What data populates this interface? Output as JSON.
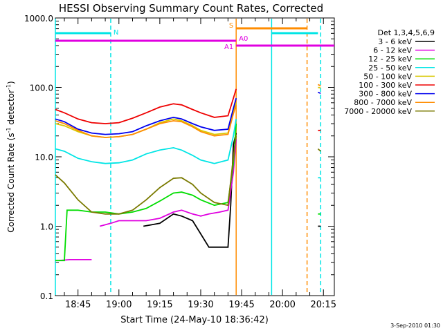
{
  "chart_data": {
    "type": "line",
    "title": "HESSI Observing Summary Count Rates, Corrected",
    "xlabel": "Start Time (24-May-10 18:36:42)",
    "ylabel_main": "Corrected Count Rate (s",
    "ylabel_sup1": "-1",
    "ylabel_mid": " detector",
    "ylabel_sup2": "-1",
    "ylabel_end": ")",
    "y_scale": "log",
    "ylim": [
      0.1,
      1000
    ],
    "xlim": [
      "18:36:42",
      "20:19:00"
    ],
    "x_ticks": [
      "18:45",
      "19:00",
      "19:15",
      "19:30",
      "19:45",
      "20:00",
      "20:15"
    ],
    "y_ticks": [
      "0.1",
      "1.0",
      "10.0",
      "100.0",
      "1000.0"
    ],
    "legend_title": "Det 1,3,4,5,6,9",
    "legend_position": "right, outside plot",
    "footer_date": "3-Sep-2010 01:30",
    "flags": [
      {
        "label": "N",
        "color": "#00e5e5",
        "segments": [
          [
            "18:36:42",
            "18:57:00"
          ],
          [
            "19:56:00",
            "20:13:00"
          ]
        ]
      },
      {
        "label": "S",
        "color": "#ff8c00",
        "segments": [
          [
            "19:43:00",
            "20:09:00"
          ]
        ]
      },
      {
        "label": "A0",
        "color": "#e000e0",
        "segments": [
          [
            "18:36:42",
            "19:43:00"
          ]
        ]
      },
      {
        "label": "A1",
        "color": "#e000e0",
        "segments": [
          [
            "19:43:00",
            "20:19:00"
          ]
        ]
      }
    ],
    "markers": [
      {
        "time": "18:36:42",
        "color": "#00e5e5",
        "style": "solid"
      },
      {
        "time": "18:57:00",
        "color": "#00e5e5",
        "style": "dashed"
      },
      {
        "time": "19:43:00",
        "color": "#ff8c00",
        "style": "solid"
      },
      {
        "time": "19:56:00",
        "color": "#00e5e5",
        "style": "solid"
      },
      {
        "time": "20:09:00",
        "color": "#ff8c00",
        "style": "dashed"
      },
      {
        "time": "20:14:00",
        "color": "#00e5e5",
        "style": "dashed"
      }
    ],
    "series": [
      {
        "name": "3 - 6 keV",
        "color": "#000000",
        "points": [
          [
            "19:09",
            "1.0"
          ],
          [
            "19:15",
            "1.1"
          ],
          [
            "19:20",
            "1.5"
          ],
          [
            "19:23",
            "1.4"
          ],
          [
            "19:27",
            "1.2"
          ],
          [
            "19:29",
            "0.9"
          ],
          [
            "19:33",
            "0.5"
          ],
          [
            "19:38",
            "0.5"
          ],
          [
            "19:40",
            "0.5"
          ],
          [
            "19:41",
            "2.0"
          ],
          [
            "19:42",
            "15"
          ],
          [
            "19:43",
            "22"
          ]
        ],
        "points_after": [
          [
            "20:13",
            "1.0"
          ],
          [
            "20:14",
            "1.0"
          ]
        ]
      },
      {
        "name": "6 - 12 keV",
        "color": "#e000e0",
        "points": [
          [
            "18:38",
            "0.32"
          ],
          [
            "18:42",
            "0.33"
          ],
          [
            "18:47",
            "0.33"
          ],
          [
            "18:50",
            "0.33"
          ]
        ],
        "points_mid": [
          [
            "18:53",
            "1.0"
          ],
          [
            "18:57",
            "1.1"
          ],
          [
            "19:00",
            "1.2"
          ],
          [
            "19:05",
            "1.2"
          ],
          [
            "19:10",
            "1.2"
          ],
          [
            "19:15",
            "1.3"
          ],
          [
            "19:20",
            "1.6"
          ],
          [
            "19:23",
            "1.7"
          ],
          [
            "19:27",
            "1.5"
          ],
          [
            "19:30",
            "1.4"
          ],
          [
            "19:33",
            "1.5"
          ],
          [
            "19:37",
            "1.6"
          ],
          [
            "19:40",
            "1.7"
          ],
          [
            "19:42",
            "6.0"
          ],
          [
            "19:43",
            "18"
          ]
        ]
      },
      {
        "name": "12 - 25 keV",
        "color": "#00dd00",
        "points": [
          [
            "18:36:42",
            "0.32"
          ],
          [
            "18:40",
            "0.32"
          ],
          [
            "18:41",
            "1.7"
          ],
          [
            "18:45",
            "1.7"
          ],
          [
            "18:50",
            "1.6"
          ],
          [
            "18:55",
            "1.6"
          ],
          [
            "19:00",
            "1.5"
          ],
          [
            "19:05",
            "1.6"
          ],
          [
            "19:10",
            "1.8"
          ],
          [
            "19:15",
            "2.3"
          ],
          [
            "19:20",
            "3.0"
          ],
          [
            "19:23",
            "3.1"
          ],
          [
            "19:27",
            "2.8"
          ],
          [
            "19:30",
            "2.4"
          ],
          [
            "19:35",
            "2.0"
          ],
          [
            "19:40",
            "2.2"
          ],
          [
            "19:42",
            "8.0"
          ],
          [
            "19:43",
            "30"
          ]
        ],
        "points_after": [
          [
            "20:13",
            "1.5"
          ],
          [
            "20:14",
            "1.5"
          ]
        ]
      },
      {
        "name": "25 - 50 keV",
        "color": "#00e5e5",
        "points": [
          [
            "18:36:42",
            "13"
          ],
          [
            "18:40",
            "12"
          ],
          [
            "18:45",
            "9.5"
          ],
          [
            "18:50",
            "8.5"
          ],
          [
            "18:55",
            "8.0"
          ],
          [
            "19:00",
            "8.2"
          ],
          [
            "19:05",
            "9.0"
          ],
          [
            "19:10",
            "11"
          ],
          [
            "19:15",
            "12.5"
          ],
          [
            "19:20",
            "13.5"
          ],
          [
            "19:23",
            "12.5"
          ],
          [
            "19:27",
            "10.5"
          ],
          [
            "19:30",
            "9.0"
          ],
          [
            "19:35",
            "8.0"
          ],
          [
            "19:40",
            "9.0"
          ],
          [
            "19:42",
            "20"
          ],
          [
            "19:43",
            "35"
          ]
        ],
        "points_after": [
          [
            "20:13",
            "5.0"
          ],
          [
            "20:14",
            "5.0"
          ]
        ]
      },
      {
        "name": "50 - 100 keV",
        "color": "#d8c800",
        "points": [
          [
            "18:36:42",
            "30"
          ],
          [
            "18:40",
            "28"
          ],
          [
            "18:45",
            "23"
          ],
          [
            "18:50",
            "20"
          ],
          [
            "18:55",
            "19"
          ],
          [
            "19:00",
            "19.5"
          ],
          [
            "19:05",
            "21"
          ],
          [
            "19:10",
            "25"
          ],
          [
            "19:15",
            "31"
          ],
          [
            "19:20",
            "35"
          ],
          [
            "19:23",
            "33"
          ],
          [
            "19:27",
            "28"
          ],
          [
            "19:30",
            "24"
          ],
          [
            "19:35",
            "21"
          ],
          [
            "19:40",
            "22"
          ],
          [
            "19:42",
            "45"
          ],
          [
            "19:43",
            "60"
          ]
        ],
        "points_after": [
          [
            "20:13",
            "100"
          ],
          [
            "20:14",
            "98"
          ]
        ]
      },
      {
        "name": "100 - 300 keV",
        "color": "#ee0000",
        "points": [
          [
            "18:36:42",
            "48"
          ],
          [
            "18:40",
            "43"
          ],
          [
            "18:45",
            "35"
          ],
          [
            "18:50",
            "31"
          ],
          [
            "18:55",
            "30"
          ],
          [
            "19:00",
            "31"
          ],
          [
            "19:05",
            "36"
          ],
          [
            "19:10",
            "43"
          ],
          [
            "19:15",
            "52"
          ],
          [
            "19:20",
            "58"
          ],
          [
            "19:23",
            "56"
          ],
          [
            "19:27",
            "48"
          ],
          [
            "19:30",
            "43"
          ],
          [
            "19:35",
            "37"
          ],
          [
            "19:40",
            "39"
          ],
          [
            "19:42",
            "70"
          ],
          [
            "19:43",
            "95"
          ]
        ],
        "points_after": [
          [
            "20:13",
            "24"
          ],
          [
            "20:14",
            "24"
          ]
        ]
      },
      {
        "name": "300 - 800 keV",
        "color": "#0000ee",
        "points": [
          [
            "18:36:42",
            "35"
          ],
          [
            "18:40",
            "32"
          ],
          [
            "18:45",
            "25"
          ],
          [
            "18:50",
            "22"
          ],
          [
            "18:55",
            "21"
          ],
          [
            "19:00",
            "21.5"
          ],
          [
            "19:05",
            "23"
          ],
          [
            "19:10",
            "28"
          ],
          [
            "19:15",
            "33"
          ],
          [
            "19:20",
            "37"
          ],
          [
            "19:23",
            "35"
          ],
          [
            "19:27",
            "30"
          ],
          [
            "19:30",
            "27"
          ],
          [
            "19:35",
            "24"
          ],
          [
            "19:40",
            "25"
          ],
          [
            "19:42",
            "50"
          ],
          [
            "19:43",
            "70"
          ]
        ],
        "points_after": [
          [
            "20:13",
            "85"
          ],
          [
            "20:14",
            "82"
          ]
        ]
      },
      {
        "name": "800 - 7000 keV",
        "color": "#ff8c00",
        "points": [
          [
            "18:36:42",
            "33"
          ],
          [
            "18:40",
            "30"
          ],
          [
            "18:45",
            "24"
          ],
          [
            "18:50",
            "20"
          ],
          [
            "18:55",
            "19"
          ],
          [
            "19:00",
            "19.5"
          ],
          [
            "19:05",
            "21"
          ],
          [
            "19:10",
            "25"
          ],
          [
            "19:15",
            "30"
          ],
          [
            "19:20",
            "33"
          ],
          [
            "19:23",
            "32"
          ],
          [
            "19:27",
            "27"
          ],
          [
            "19:30",
            "23"
          ],
          [
            "19:35",
            "20"
          ],
          [
            "19:40",
            "21"
          ],
          [
            "19:42",
            "42"
          ],
          [
            "19:43",
            "55"
          ]
        ],
        "points_after": [
          [
            "20:13",
            "110"
          ],
          [
            "20:14",
            "105"
          ]
        ]
      },
      {
        "name": "7000 - 20000 keV",
        "color": "#7a7a00",
        "points": [
          [
            "18:36:42",
            "5.5"
          ],
          [
            "18:40",
            "4.2"
          ],
          [
            "18:45",
            "2.4"
          ],
          [
            "18:50",
            "1.6"
          ],
          [
            "18:55",
            "1.5"
          ],
          [
            "19:00",
            "1.5"
          ],
          [
            "19:05",
            "1.7"
          ],
          [
            "19:10",
            "2.4"
          ],
          [
            "19:15",
            "3.6"
          ],
          [
            "19:20",
            "4.9"
          ],
          [
            "19:23",
            "5.0"
          ],
          [
            "19:27",
            "4.0"
          ],
          [
            "19:30",
            "3.0"
          ],
          [
            "19:35",
            "2.2"
          ],
          [
            "19:40",
            "2.0"
          ],
          [
            "19:42",
            "10"
          ],
          [
            "19:43",
            "20"
          ]
        ],
        "points_after": [
          [
            "20:13",
            "13"
          ],
          [
            "20:14",
            "12"
          ]
        ]
      }
    ]
  }
}
